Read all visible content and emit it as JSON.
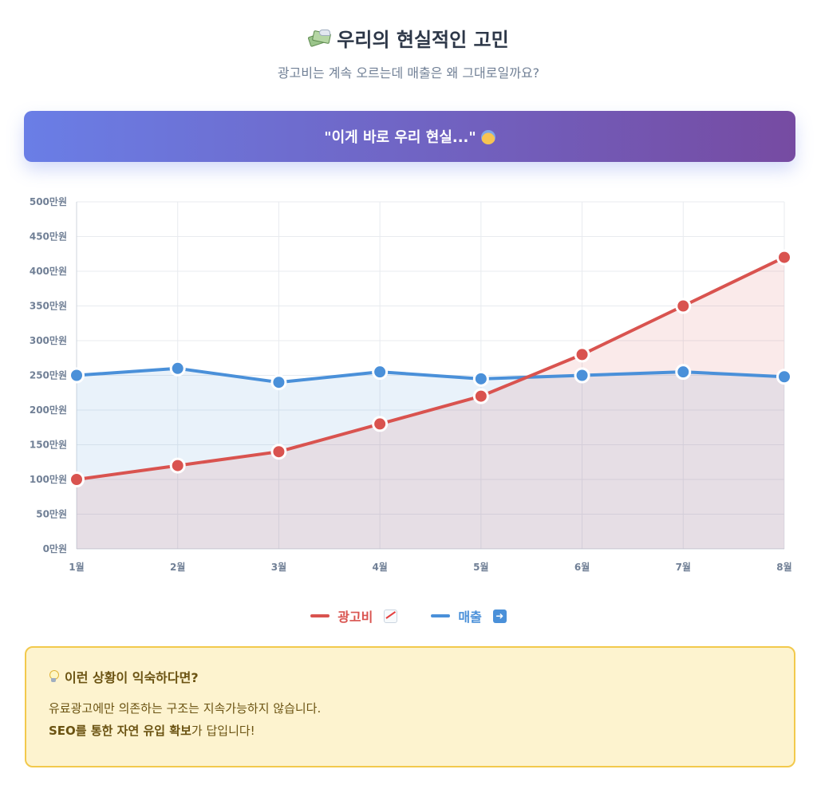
{
  "header": {
    "title_icon": "flying-money-icon",
    "title": "우리의 현실적인 고민",
    "subtitle": "광고비는 계속 오르는데 매출은 왜 그대로일까요?"
  },
  "banner": {
    "text": "\"이게 바로 우리 현실...\"",
    "icon": "anxious-face-icon",
    "gradient_from": "#667eea",
    "gradient_to": "#764ba2"
  },
  "chart_data": {
    "type": "line",
    "x": [
      "1월",
      "2월",
      "3월",
      "4월",
      "5월",
      "6월",
      "7월",
      "8월"
    ],
    "series": [
      {
        "name": "광고비",
        "legend_icon": "chart-increasing-icon",
        "color": "#d9534f",
        "values": [
          100,
          120,
          140,
          180,
          220,
          280,
          350,
          420
        ]
      },
      {
        "name": "매출",
        "legend_icon": "right-arrow-icon",
        "color": "#4a90d9",
        "values": [
          250,
          260,
          240,
          255,
          245,
          250,
          255,
          248
        ]
      }
    ],
    "y_ticks": [
      "0만원",
      "50만원",
      "100만원",
      "150만원",
      "200만원",
      "250만원",
      "300만원",
      "350만원",
      "400만원",
      "450만원",
      "500만원"
    ],
    "ylim": [
      0,
      500
    ],
    "fill_area": true,
    "grid": true,
    "legend_position": "bottom"
  },
  "note": {
    "icon": "light-bulb-icon",
    "title": "이런 상황이 익숙하다면?",
    "line1": "유료광고에만 의존하는 구조는 지속가능하지 않습니다.",
    "line2_strong": "SEO를 통한 자연 유입 확보",
    "line2_rest": "가 답입니다!"
  }
}
